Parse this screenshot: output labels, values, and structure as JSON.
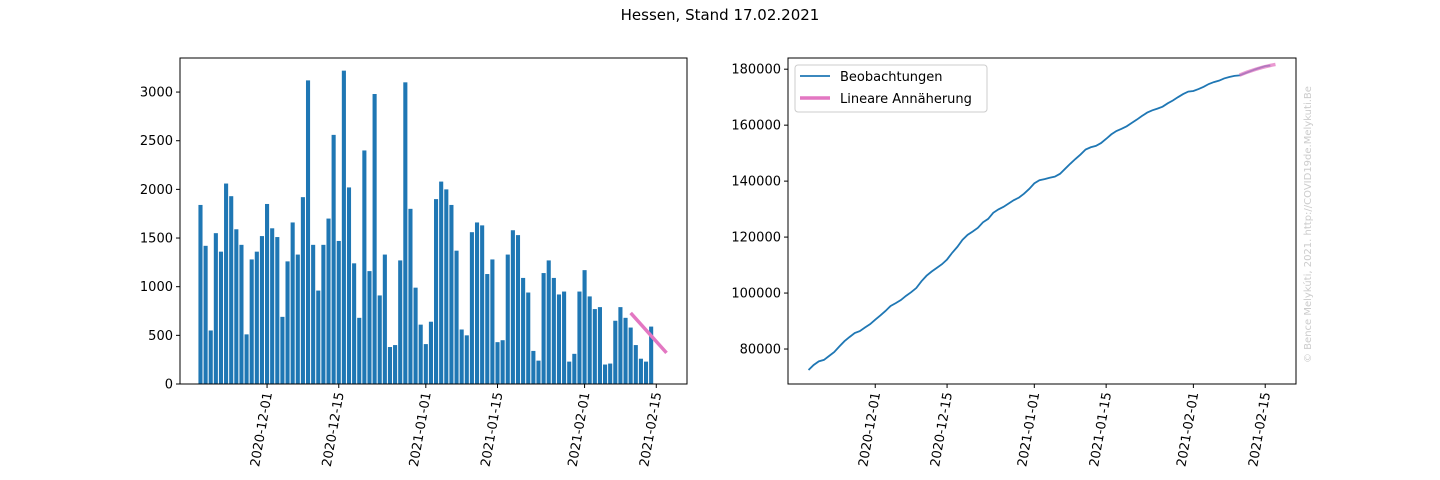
{
  "title": "Hessen, Stand 17.02.2021",
  "watermark": "© Bence Melykúti, 2021. http://COVID19de.Melykuti.Be",
  "colors": {
    "bar": "#1f77b4",
    "line": "#1f77b4",
    "fit": "#e377c2"
  },
  "chart_data": [
    {
      "type": "bar",
      "x_start": "2020-11-18",
      "x_end": "2021-02-17",
      "values": [
        1840,
        1420,
        550,
        1550,
        1360,
        2060,
        1930,
        1590,
        1430,
        510,
        1280,
        1360,
        1520,
        1850,
        1600,
        1510,
        690,
        1260,
        1660,
        1330,
        1920,
        3120,
        1430,
        960,
        1430,
        1700,
        2560,
        1470,
        3220,
        2020,
        1240,
        680,
        2400,
        1160,
        2980,
        910,
        1330,
        380,
        400,
        1270,
        3100,
        1800,
        990,
        610,
        410,
        640,
        1900,
        2080,
        2000,
        1840,
        1370,
        560,
        500,
        1560,
        1660,
        1630,
        1130,
        1280,
        430,
        450,
        1330,
        1580,
        1530,
        1090,
        940,
        340,
        240,
        1140,
        1270,
        1090,
        920,
        950,
        230,
        310,
        950,
        1170,
        900,
        770,
        790,
        200,
        210,
        650,
        790,
        680,
        580,
        400,
        260,
        230,
        590
      ],
      "fit": {
        "x": [
          "2021-02-10",
          "2021-02-17"
        ],
        "y": [
          730,
          320
        ]
      },
      "ylim": [
        0,
        3350
      ],
      "yticks": [
        "0",
        "500",
        "1000",
        "1500",
        "2000",
        "2500",
        "3000"
      ],
      "xticks": [
        "2020-12-01",
        "2020-12-15",
        "2021-01-01",
        "2021-01-15",
        "2021-02-01",
        "2021-02-15"
      ]
    },
    {
      "type": "line",
      "x_start": "2020-11-18",
      "x_end": "2021-02-17",
      "series": [
        {
          "name": "Beobachtungen",
          "values": [
            72500,
            74300,
            75600,
            76100,
            77500,
            78900,
            80900,
            82800,
            84300,
            85700,
            86400,
            87700,
            88900,
            90500,
            92000,
            93600,
            95400,
            96400,
            97500,
            99000,
            100300,
            101800,
            104200,
            106200,
            107700,
            109000,
            110300,
            112000,
            114400,
            116500,
            119000,
            120800,
            122000,
            123300,
            125300,
            126500,
            128700,
            129900,
            130800,
            132000,
            133200,
            134100,
            135500,
            137200,
            139200,
            140300,
            140700,
            141200,
            141600,
            142600,
            144400,
            146200,
            147900,
            149500,
            151300,
            152100,
            152600,
            153600,
            155100,
            156700,
            157900,
            158700,
            159600,
            160800,
            162000,
            163300,
            164500,
            165300,
            165900,
            166600,
            167800,
            168800,
            170000,
            171100,
            172000,
            172200,
            172900,
            173700,
            174700,
            175400,
            175900,
            176700,
            177200,
            177600,
            177800,
            178500,
            179200,
            179900,
            180500,
            181100,
            181300
          ]
        },
        {
          "name": "Lineare Annäherung",
          "x": [
            "2021-02-10",
            "2021-02-17"
          ],
          "y": [
            177900,
            181700
          ]
        }
      ],
      "ylim": [
        67500,
        184000
      ],
      "yticks": [
        "80000",
        "100000",
        "120000",
        "140000",
        "160000",
        "180000"
      ],
      "xticks": [
        "2020-12-01",
        "2020-12-15",
        "2021-01-01",
        "2021-01-15",
        "2021-02-01",
        "2021-02-15"
      ]
    }
  ]
}
